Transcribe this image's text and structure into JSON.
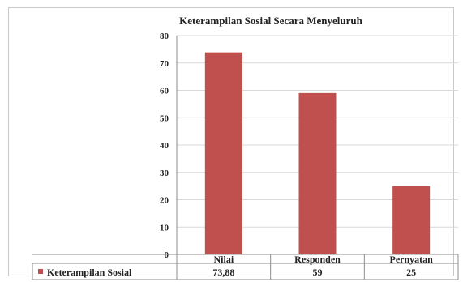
{
  "chart_data": {
    "type": "bar",
    "title": "Keterampilan Sosial Secara Menyeluruh",
    "categories": [
      "Nilai",
      "Responden",
      "Pernyatan"
    ],
    "series": [
      {
        "name": "Keterampilan Sosial",
        "values": [
          73.88,
          59,
          25
        ]
      }
    ],
    "data_table": [
      "73,88",
      "59",
      "25"
    ],
    "ylim": [
      0,
      80
    ],
    "yticks": [
      0,
      10,
      20,
      30,
      40,
      50,
      60,
      70,
      80
    ],
    "grid": true,
    "legend": "in data table",
    "colors": {
      "bar": "#c0504d",
      "grid": "#d9d9d9",
      "axis": "#8c8c8c"
    }
  }
}
